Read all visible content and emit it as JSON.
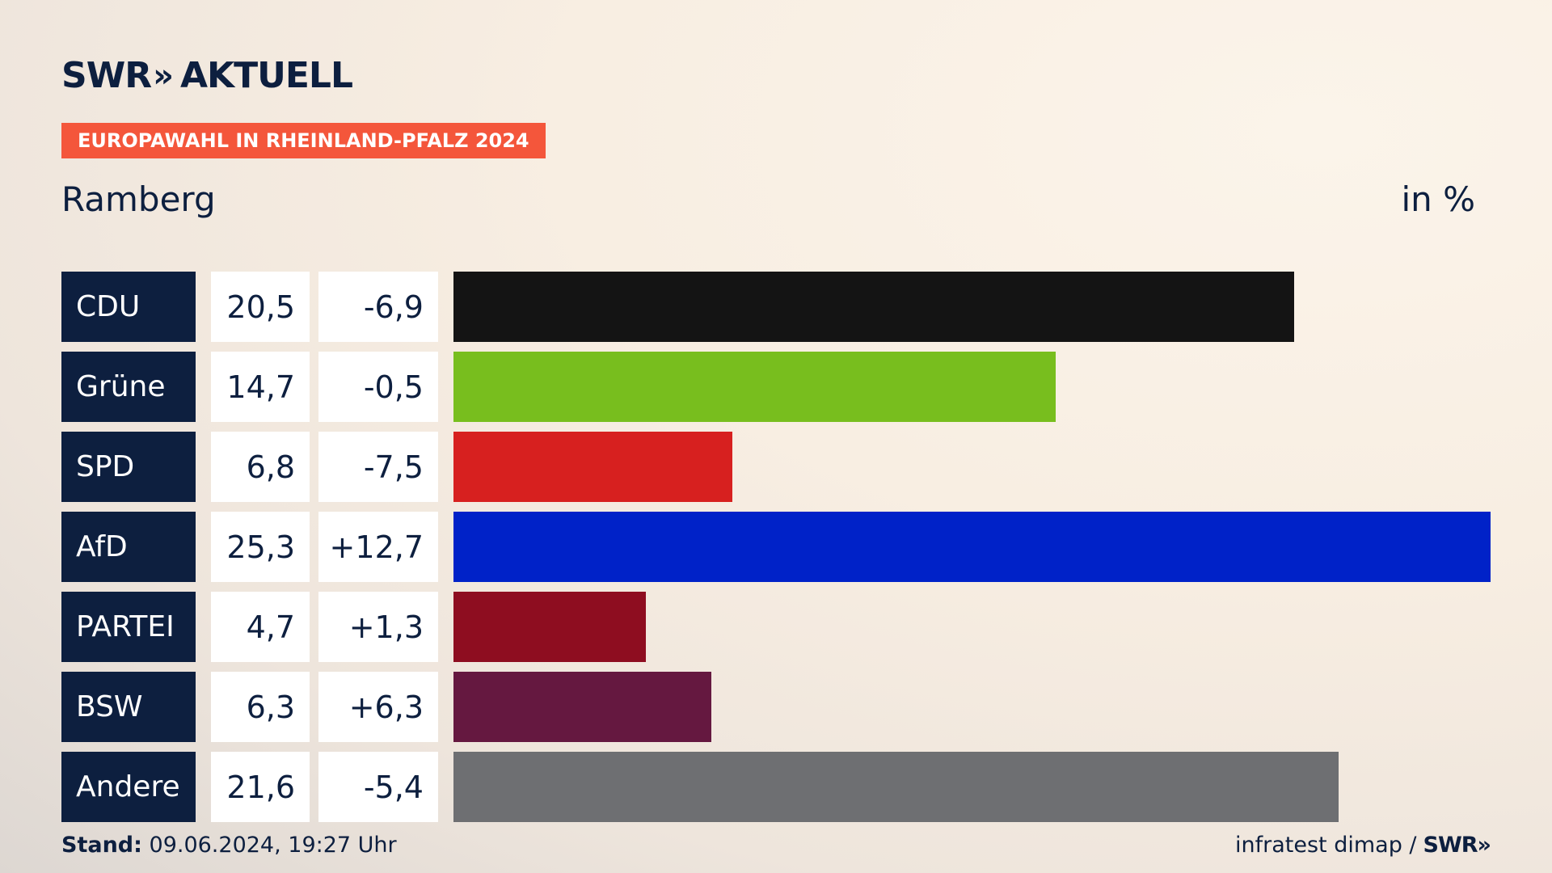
{
  "header": {
    "logo_text": "SWR",
    "logo_chevrons": "»",
    "logo_word": "AKTUELL",
    "tag": "EUROPAWAHL IN RHEINLAND-PFALZ 2024",
    "place": "Ramberg",
    "unit": "in %"
  },
  "chart_data": {
    "type": "bar",
    "orientation": "horizontal",
    "title": "Ramberg",
    "ylabel": "in %",
    "xlim": [
      0,
      25.3
    ],
    "categories": [
      "CDU",
      "Grüne",
      "SPD",
      "AfD",
      "PARTEI",
      "BSW",
      "Andere"
    ],
    "values": [
      20.5,
      14.7,
      6.8,
      25.3,
      4.7,
      6.3,
      21.6
    ],
    "value_labels": [
      "20,5",
      "14,7",
      "6,8",
      "25,3",
      "4,7",
      "6,3",
      "21,6"
    ],
    "diff_labels": [
      "-6,9",
      "-0,5",
      "-7,5",
      "+12,7",
      "+1,3",
      "+6,3",
      "-5,4"
    ],
    "colors": [
      "#141414",
      "#78be1e",
      "#d7201f",
      "#0022c8",
      "#8e0d20",
      "#651840",
      "#6e6f72"
    ]
  },
  "footer": {
    "stand_label": "Stand:",
    "stand_value": "09.06.2024, 19:27 Uhr",
    "source": "infratest dimap /",
    "source_logo": "SWR»"
  }
}
